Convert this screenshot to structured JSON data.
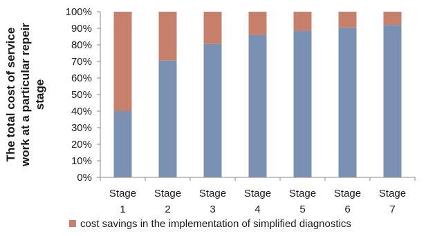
{
  "chart_data": {
    "type": "bar",
    "stacked": true,
    "categories": [
      [
        "Stage",
        "1"
      ],
      [
        "Stage",
        "2"
      ],
      [
        "Stage",
        "3"
      ],
      [
        "Stage",
        "4"
      ],
      [
        "Stage",
        "5"
      ],
      [
        "Stage",
        "6"
      ],
      [
        "Stage",
        "7"
      ]
    ],
    "series": [
      {
        "color": "#7b91b4",
        "values": [
          40,
          70.5,
          80.5,
          86,
          88.5,
          90.5,
          92
        ]
      },
      {
        "name": "cost savings in the implementation of simplified diagnostics",
        "color": "#c7806b",
        "values": [
          60,
          29.5,
          19.5,
          14,
          11.5,
          9.5,
          8
        ]
      }
    ],
    "ylabel": [
      "The total cost of service",
      "work at a particular repeir",
      "stage"
    ],
    "ylim": [
      0,
      100
    ],
    "yticks": [
      "0%",
      "10%",
      "20%",
      "30%",
      "40%",
      "50%",
      "60%",
      "70%",
      "80%",
      "90%",
      "100%"
    ],
    "grid": false,
    "legend": "bottom"
  }
}
